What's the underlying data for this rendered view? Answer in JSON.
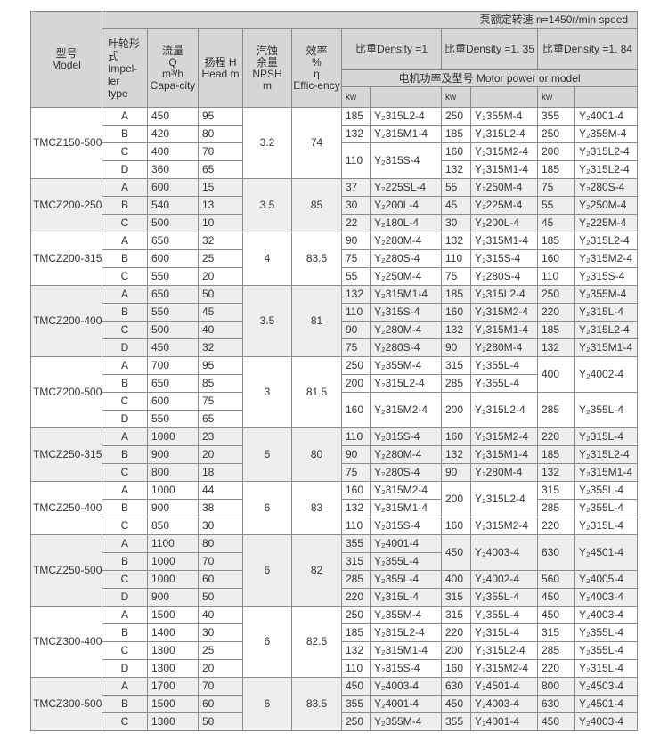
{
  "header": {
    "model": "型号\nModel",
    "speed": "泵额定转速  n=1450r/min speed",
    "impeller": "叶轮形\n式\nImpel-\nler\ntype",
    "capacity": "流量\nQ\nm³/h\nCapa-city",
    "head": "扬程 H\nHead m",
    "npsh": "汽蚀\n余量\nNPSH\nm",
    "efficiency": "效率\n%\nη\nEffic-ency",
    "density1": "比重Density  =1",
    "density135": "比重Density  =1. 35",
    "density184": "比重Density  =1. 84",
    "motor": "电机功率及型号  Motor power or model",
    "kw": "kw"
  },
  "colors": {
    "header_bg": "#d6d6d6",
    "border": "#8a8a8a",
    "alt_row": "#eeeeee",
    "text": "#333333"
  },
  "groups": [
    {
      "model": "TMCZ150-500",
      "npsh": "3.2",
      "eff": "74",
      "rows": [
        [
          "A",
          "450",
          "95"
        ],
        [
          "B",
          "420",
          "80"
        ],
        [
          "C",
          "400",
          "70"
        ],
        [
          "D",
          "360",
          "65"
        ]
      ],
      "d1": [
        {
          "kw": "185",
          "m": "Y₂315L2-4"
        },
        {
          "kw": "132",
          "m": "Y₂315M1-4"
        },
        {
          "kw": "110",
          "m": "Y₂315S-4",
          "span": 2
        }
      ],
      "d135": [
        {
          "kw": "250",
          "m": "Y₂355M-4"
        },
        {
          "kw": "185",
          "m": "Y₂315L2-4"
        },
        {
          "kw": "160",
          "m": "Y₂315M2-4"
        },
        {
          "kw": "132",
          "m": "Y₂315M1-4"
        }
      ],
      "d184": [
        {
          "kw": "355",
          "m": "Y₂4001-4"
        },
        {
          "kw": "250",
          "m": "Y₂355M-4"
        },
        {
          "kw": "200",
          "m": "Y₂315L2-4"
        },
        {
          "kw": "185",
          "m": "Y₂315L2-4"
        }
      ]
    },
    {
      "model": "TMCZ200-250",
      "npsh": "3.5",
      "eff": "85",
      "rows": [
        [
          "A",
          "600",
          "15"
        ],
        [
          "B",
          "540",
          "13"
        ],
        [
          "C",
          "500",
          "10"
        ]
      ],
      "d1": [
        {
          "kw": "37",
          "m": "Y₂225SL-4"
        },
        {
          "kw": "30",
          "m": "Y₂200L-4"
        },
        {
          "kw": "22",
          "m": "Y₂180L-4"
        }
      ],
      "d135": [
        {
          "kw": "55",
          "m": "Y₂250M-4"
        },
        {
          "kw": "45",
          "m": "Y₂225M-4"
        },
        {
          "kw": "30",
          "m": "Y₂200L-4"
        }
      ],
      "d184": [
        {
          "kw": "75",
          "m": "Y₂280S-4"
        },
        {
          "kw": "55",
          "m": "Y₂250M-4"
        },
        {
          "kw": "45",
          "m": "Y₂225M-4"
        }
      ]
    },
    {
      "model": "TMCZ200-315",
      "npsh": "4",
      "eff": "83.5",
      "rows": [
        [
          "A",
          "650",
          "32"
        ],
        [
          "B",
          "600",
          "25"
        ],
        [
          "C",
          "550",
          "20"
        ]
      ],
      "d1": [
        {
          "kw": "90",
          "m": "Y₂280M-4"
        },
        {
          "kw": "75",
          "m": "Y₂280S-4"
        },
        {
          "kw": "55",
          "m": "Y₂250M-4"
        }
      ],
      "d135": [
        {
          "kw": "132",
          "m": "Y₂315M1-4"
        },
        {
          "kw": "110",
          "m": "Y₂315S-4"
        },
        {
          "kw": "75",
          "m": "Y₂280S-4"
        }
      ],
      "d184": [
        {
          "kw": "185",
          "m": "Y₂315L2-4"
        },
        {
          "kw": "160",
          "m": "Y₂315M2-4"
        },
        {
          "kw": "110",
          "m": "Y₂315S-4"
        }
      ]
    },
    {
      "model": "TMCZ200-400",
      "npsh": "3.5",
      "eff": "81",
      "rows": [
        [
          "A",
          "650",
          "50"
        ],
        [
          "B",
          "550",
          "45"
        ],
        [
          "C",
          "500",
          "40"
        ],
        [
          "D",
          "450",
          "32"
        ]
      ],
      "d1": [
        {
          "kw": "132",
          "m": "Y₂315M1-4"
        },
        {
          "kw": "110",
          "m": "Y₂315S-4"
        },
        {
          "kw": "90",
          "m": "Y₂280M-4"
        },
        {
          "kw": "75",
          "m": "Y₂280S-4"
        }
      ],
      "d135": [
        {
          "kw": "185",
          "m": "Y₂315L2-4"
        },
        {
          "kw": "160",
          "m": "Y₂315M2-4"
        },
        {
          "kw": "132",
          "m": "Y₂315M1-4"
        },
        {
          "kw": "90",
          "m": "Y₂280M-4"
        }
      ],
      "d184": [
        {
          "kw": "250",
          "m": "Y₂355M-4"
        },
        {
          "kw": "220",
          "m": "Y₂315L-4"
        },
        {
          "kw": "185",
          "m": "Y₂315L2-4"
        },
        {
          "kw": "132",
          "m": "Y₂315M1-4"
        }
      ]
    },
    {
      "model": "TMCZ200-500",
      "npsh": "3",
      "eff": "81.5",
      "rows": [
        [
          "A",
          "700",
          "95"
        ],
        [
          "B",
          "650",
          "85"
        ],
        [
          "C",
          "600",
          "75"
        ],
        [
          "D",
          "550",
          "65"
        ]
      ],
      "d1": [
        {
          "kw": "250",
          "m": "Y₂355M-4"
        },
        {
          "kw": "200",
          "m": "Y₂315L2-4"
        },
        {
          "kw": "160",
          "m": "Y₂315M2-4",
          "span": 2
        }
      ],
      "d135": [
        {
          "kw": "315",
          "m": "Y₂355L-4"
        },
        {
          "kw": "285",
          "m": "Y₂355L-4"
        },
        {
          "kw": "200",
          "m": "Y₂315L2-4",
          "span": 2
        }
      ],
      "d184": [
        {
          "kw": "400",
          "m": "Y₂4002-4",
          "span": 2
        },
        {
          "kw": "285",
          "m": "Y₂355L-4",
          "span": 2
        }
      ]
    },
    {
      "model": "TMCZ250-315",
      "npsh": "5",
      "eff": "80",
      "rows": [
        [
          "A",
          "1000",
          "23"
        ],
        [
          "B",
          "900",
          "20"
        ],
        [
          "C",
          "800",
          "18"
        ]
      ],
      "d1": [
        {
          "kw": "110",
          "m": "Y₂315S-4"
        },
        {
          "kw": "90",
          "m": "Y₂280M-4"
        },
        {
          "kw": "75",
          "m": "Y₂280S-4"
        }
      ],
      "d135": [
        {
          "kw": "160",
          "m": "Y₂315M2-4"
        },
        {
          "kw": "132",
          "m": "Y₂315M1-4"
        },
        {
          "kw": "90",
          "m": "Y₂280M-4"
        }
      ],
      "d184": [
        {
          "kw": "220",
          "m": "Y₂315L-4"
        },
        {
          "kw": "185",
          "m": "Y₂315L2-4"
        },
        {
          "kw": "132",
          "m": "Y₂315M1-4"
        }
      ]
    },
    {
      "model": "TMCZ250-400",
      "npsh": "6",
      "eff": "83",
      "rows": [
        [
          "A",
          "1000",
          "44"
        ],
        [
          "B",
          "900",
          "38"
        ],
        [
          "C",
          "850",
          "30"
        ]
      ],
      "d1": [
        {
          "kw": "160",
          "m": "Y₂315M2-4"
        },
        {
          "kw": "132",
          "m": "Y₂315M1-4"
        },
        {
          "kw": "110",
          "m": "Y₂315S-4"
        }
      ],
      "d135": [
        {
          "kw": "200",
          "m": "Y₂315L2-4",
          "span": 2
        },
        {
          "kw": "160",
          "m": "Y₂315M2-4"
        }
      ],
      "d184": [
        {
          "kw": "315",
          "m": "Y₂355L-4"
        },
        {
          "kw": "285",
          "m": "Y₂355L-4"
        },
        {
          "kw": "220",
          "m": "Y₂315L-4"
        }
      ]
    },
    {
      "model": "TMCZ250-500",
      "npsh": "6",
      "eff": "82",
      "rows": [
        [
          "A",
          "1100",
          "80"
        ],
        [
          "B",
          "1000",
          "70"
        ],
        [
          "C",
          "1000",
          "60"
        ],
        [
          "D",
          "900",
          "50"
        ]
      ],
      "d1": [
        {
          "kw": "355",
          "m": "Y₂4001-4"
        },
        {
          "kw": "315",
          "m": "Y₂355L-4"
        },
        {
          "kw": "285",
          "m": "Y₂355L-4"
        },
        {
          "kw": "220",
          "m": "Y₂315L-4"
        }
      ],
      "d135": [
        {
          "kw": "450",
          "m": "Y₂4003-4",
          "span": 2
        },
        {
          "kw": "400",
          "m": "Y₂4002-4"
        },
        {
          "kw": "315",
          "m": "Y₂355L-4"
        }
      ],
      "d184": [
        {
          "kw": "630",
          "m": "Y₂4501-4",
          "span": 2
        },
        {
          "kw": "560",
          "m": "Y₂4005-4"
        },
        {
          "kw": "450",
          "m": "Y₂4003-4"
        }
      ]
    },
    {
      "model": "TMCZ300-400",
      "npsh": "6",
      "eff": "82.5",
      "rows": [
        [
          "A",
          "1500",
          "40"
        ],
        [
          "B",
          "1400",
          "30"
        ],
        [
          "C",
          "1300",
          "25"
        ],
        [
          "D",
          "1300",
          "20"
        ]
      ],
      "d1": [
        {
          "kw": "250",
          "m": "Y₂355M-4"
        },
        {
          "kw": "185",
          "m": "Y₂315L2-4"
        },
        {
          "kw": "132",
          "m": "Y₂315M1-4"
        },
        {
          "kw": "110",
          "m": "Y₂315S-4"
        }
      ],
      "d135": [
        {
          "kw": "315",
          "m": "Y₂355L-4"
        },
        {
          "kw": "220",
          "m": "Y₂315L-4"
        },
        {
          "kw": "200",
          "m": "Y₂315L2-4"
        },
        {
          "kw": "160",
          "m": "Y₂315M2-4"
        }
      ],
      "d184": [
        {
          "kw": "450",
          "m": "Y₂4003-4"
        },
        {
          "kw": "315",
          "m": "Y₂355L-4"
        },
        {
          "kw": "285",
          "m": "Y₂355L-4"
        },
        {
          "kw": "220",
          "m": "Y₂315L-4"
        }
      ]
    },
    {
      "model": "TMCZ300-500",
      "npsh": "6",
      "eff": "83.5",
      "rows": [
        [
          "A",
          "1700",
          "70"
        ],
        [
          "B",
          "1500",
          "60"
        ],
        [
          "C",
          "1300",
          "50"
        ]
      ],
      "d1": [
        {
          "kw": "450",
          "m": "Y₂4003-4"
        },
        {
          "kw": "355",
          "m": "Y₂4001-4"
        },
        {
          "kw": "250",
          "m": "Y₂355M-4"
        }
      ],
      "d135": [
        {
          "kw": "630",
          "m": "Y₂4501-4"
        },
        {
          "kw": "450",
          "m": "Y₂4003-4"
        },
        {
          "kw": "355",
          "m": "Y₂4001-4"
        }
      ],
      "d184": [
        {
          "kw": "800",
          "m": "Y₂4503-4"
        },
        {
          "kw": "630",
          "m": "Y₂4501-4"
        },
        {
          "kw": "450",
          "m": "Y₂4003-4"
        }
      ]
    }
  ]
}
